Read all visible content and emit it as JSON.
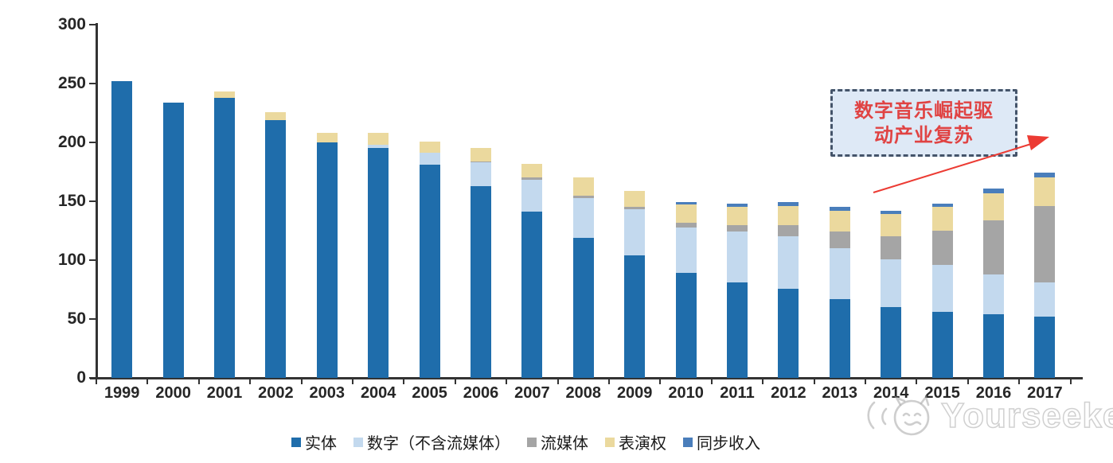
{
  "chart_data": {
    "type": "bar",
    "subtype": "stacked",
    "title": "",
    "xlabel": "",
    "ylabel": "",
    "ylim": [
      0,
      300
    ],
    "yticks": [
      0,
      50,
      100,
      150,
      200,
      250,
      300
    ],
    "grid": false,
    "legend_position": "bottom",
    "categories": [
      "1999",
      "2000",
      "2001",
      "2002",
      "2003",
      "2004",
      "2005",
      "2006",
      "2007",
      "2008",
      "2009",
      "2010",
      "2011",
      "2012",
      "2013",
      "2014",
      "2015",
      "2016",
      "2017"
    ],
    "series": [
      {
        "name": "实体",
        "color": "#1F6DAB",
        "values": [
          252,
          234,
          238,
          219,
          200,
          195,
          181,
          163,
          141,
          119,
          104,
          89,
          81,
          76,
          67,
          60,
          56,
          54,
          52
        ]
      },
      {
        "name": "数字（不含流媒体）",
        "color": "#C3D9EE",
        "values": [
          0,
          0,
          0,
          0,
          0,
          3,
          10,
          20,
          27,
          34,
          39,
          39,
          43,
          44,
          43,
          41,
          40,
          34,
          29
        ]
      },
      {
        "name": "流媒体",
        "color": "#A5A5A5",
        "values": [
          0,
          0,
          0,
          0,
          0,
          0,
          0,
          1,
          2,
          2,
          2,
          4,
          6,
          10,
          14,
          19,
          29,
          46,
          65
        ]
      },
      {
        "name": "表演权",
        "color": "#EBD99E",
        "values": [
          0,
          0,
          5,
          7,
          8,
          10,
          10,
          11,
          12,
          15,
          14,
          15,
          15,
          16,
          18,
          19,
          20,
          23,
          24
        ]
      },
      {
        "name": "同步收入",
        "color": "#4A7EBB",
        "values": [
          0,
          0,
          0,
          0,
          0,
          0,
          0,
          0,
          0,
          0,
          0,
          2,
          3,
          3,
          3,
          3,
          3,
          4,
          4
        ]
      }
    ]
  },
  "annotation": {
    "line1": "数字音乐崛起驱",
    "line2": "动产业复苏",
    "text_color": "#E04343",
    "box_fill": "#DEE9F6",
    "border_color": "#44546A",
    "arrow_color": "#EC3B33"
  },
  "watermark": {
    "text": "Yourseeker"
  }
}
